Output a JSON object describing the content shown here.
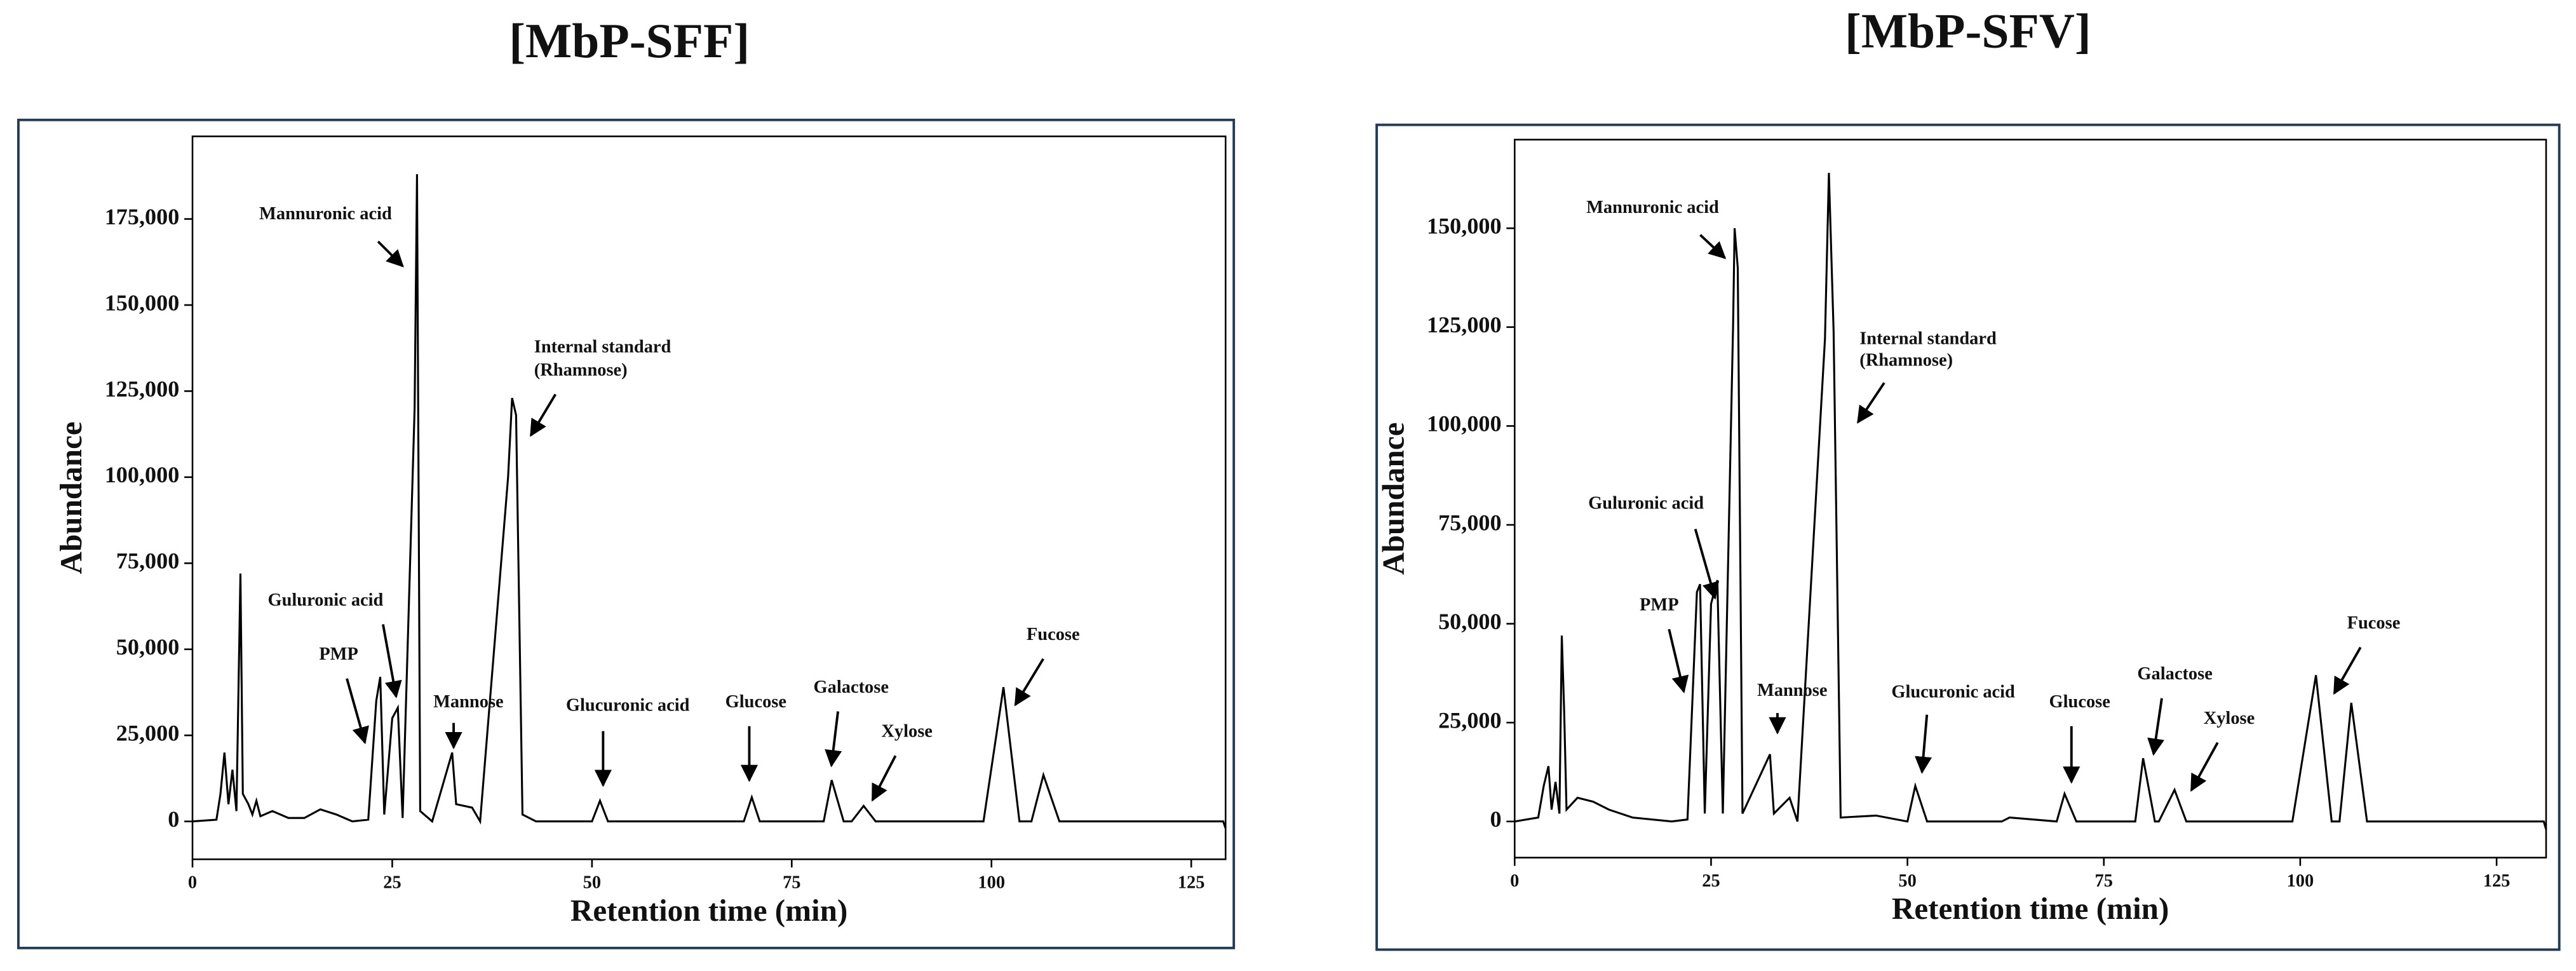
{
  "chart_data": [
    {
      "type": "line",
      "title": "[MbP-SFF]",
      "xlabel": "Retention time (min)",
      "ylabel": "Abundance",
      "color": "#000000",
      "x": [
        0,
        3,
        3.5,
        4,
        4.5,
        5,
        5.5,
        6,
        6.3,
        7,
        7.5,
        8,
        8.5,
        10,
        12,
        14,
        16,
        18,
        20,
        22,
        23,
        23.5,
        24,
        25,
        25.7,
        26.3,
        27.8,
        28.1,
        28.5,
        30,
        32.5,
        33,
        35,
        36,
        39.5,
        40,
        40.5,
        41.3,
        43,
        50,
        51,
        52,
        69,
        70,
        71,
        79,
        80,
        81.5,
        82.5,
        84,
        85.5,
        99,
        101.5,
        103.5,
        105,
        106.5,
        108.5,
        129,
        129.3
      ],
      "values": [
        0,
        500,
        8000,
        20000,
        5000,
        15000,
        3000,
        72000,
        8000,
        5000,
        2000,
        6000,
        1500,
        3000,
        1000,
        1000,
        3500,
        2000,
        0,
        500,
        35000,
        42000,
        2000,
        30000,
        33000,
        1000,
        120000,
        188000,
        3000,
        0,
        20000,
        5000,
        4000,
        0,
        100000,
        123000,
        118000,
        2000,
        0,
        0,
        6000,
        0,
        0,
        7000,
        0,
        0,
        12000,
        0,
        0,
        4500,
        0,
        0,
        39000,
        0,
        0,
        13500,
        0,
        0,
        -2000
      ],
      "xlim": [
        0,
        129.3
      ],
      "ylim": [
        -11000,
        199000
      ],
      "xticks": [
        0,
        25,
        50,
        75,
        100,
        125
      ],
      "yticks": [
        0,
        {
          "value": 25000,
          "label": "25,000"
        },
        {
          "value": 50000,
          "label": "50,000"
        },
        {
          "value": 75000,
          "label": "75,000"
        },
        {
          "value": 100000,
          "label": "100,000"
        },
        {
          "value": 125000,
          "label": "125,000"
        },
        {
          "value": 150000,
          "label": "150,000"
        },
        {
          "value": 175000,
          "label": "175,000"
        }
      ],
      "annotations": [
        "Mannuronic acid",
        "Internal standard",
        "(Rhamnose)",
        "Guluronic acid",
        "PMP",
        "Mannose",
        "Glucuronic acid",
        "Glucose",
        "Galactose",
        "Xylose",
        "Fucose"
      ]
    },
    {
      "type": "line",
      "title": "[MbP-SFV]",
      "xlabel": "Retention time (min)",
      "ylabel": "Abundance",
      "color": "#000000",
      "x": [
        0,
        3,
        3.7,
        4.3,
        4.7,
        5.2,
        5.7,
        6,
        6.3,
        6.6,
        8,
        10,
        12,
        15,
        20,
        22,
        23.2,
        23.6,
        24.2,
        25,
        25.8,
        26.5,
        27.8,
        28,
        28.4,
        29,
        32.5,
        33,
        35,
        36,
        39.5,
        40,
        40.6,
        41.5,
        46,
        50,
        51,
        52.5,
        62,
        63,
        69,
        70,
        71.5,
        79,
        80,
        81.5,
        82,
        84,
        85.5,
        99,
        102,
        104,
        105,
        106.5,
        108.5,
        131,
        131.3
      ],
      "values": [
        0,
        1000,
        9000,
        14000,
        3000,
        10000,
        2000,
        47000,
        28000,
        3000,
        6000,
        5000,
        3000,
        1000,
        0,
        500,
        58000,
        60000,
        2000,
        55000,
        61000,
        2000,
        125000,
        150000,
        140000,
        2000,
        17000,
        2000,
        6000,
        0,
        122000,
        164000,
        124000,
        1000,
        1500,
        0,
        9000,
        0,
        0,
        1000,
        0,
        7000,
        0,
        0,
        16000,
        0,
        0,
        8000,
        0,
        0,
        37000,
        0,
        0,
        30000,
        0,
        0,
        -2000
      ],
      "xlim": [
        0,
        131.3
      ],
      "ylim": [
        -9140,
        172400
      ],
      "xticks": [
        0,
        25,
        50,
        75,
        100,
        125
      ],
      "yticks": [
        0,
        {
          "value": 25000,
          "label": "25,000"
        },
        {
          "value": 50000,
          "label": "50,000"
        },
        {
          "value": 75000,
          "label": "75,000"
        },
        {
          "value": 100000,
          "label": "100,000"
        },
        {
          "value": 125000,
          "label": "125,000"
        },
        {
          "value": 150000,
          "label": "150,000"
        }
      ],
      "annotations": [
        "Mannuronic acid",
        "Internal standard",
        "(Rhamnose)",
        "Guluronic acid",
        "PMP",
        "Mannose",
        "Glucuronic acid",
        "Glucose",
        "Galactose",
        "Xylose",
        "Fucose"
      ]
    }
  ]
}
